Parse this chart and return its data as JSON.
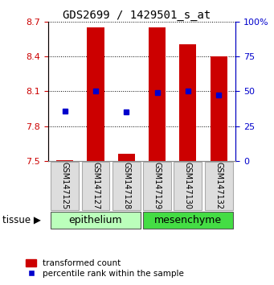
{
  "title": "GDS2699 / 1429501_s_at",
  "samples": [
    "GSM147125",
    "GSM147127",
    "GSM147128",
    "GSM147129",
    "GSM147130",
    "GSM147132"
  ],
  "bar_tops": [
    7.505,
    8.65,
    7.56,
    8.65,
    8.5,
    8.4
  ],
  "bar_base": 7.5,
  "percentile_values": [
    7.93,
    8.1,
    7.92,
    8.09,
    8.1,
    8.07
  ],
  "ylim_left": [
    7.5,
    8.7
  ],
  "ylim_right": [
    0,
    100
  ],
  "yticks_left": [
    7.5,
    7.8,
    8.1,
    8.4,
    8.7
  ],
  "yticks_right": [
    0,
    25,
    50,
    75,
    100
  ],
  "bar_color": "#cc0000",
  "point_color": "#0000cc",
  "epi_color": "#bbffbb",
  "mes_color": "#44dd44",
  "legend_labels": [
    "transformed count",
    "percentile rank within the sample"
  ],
  "bar_width": 0.55,
  "title_fontsize": 10,
  "tick_fontsize": 8,
  "sample_fontsize": 7,
  "tissue_fontsize": 9,
  "legend_fontsize": 7.5
}
